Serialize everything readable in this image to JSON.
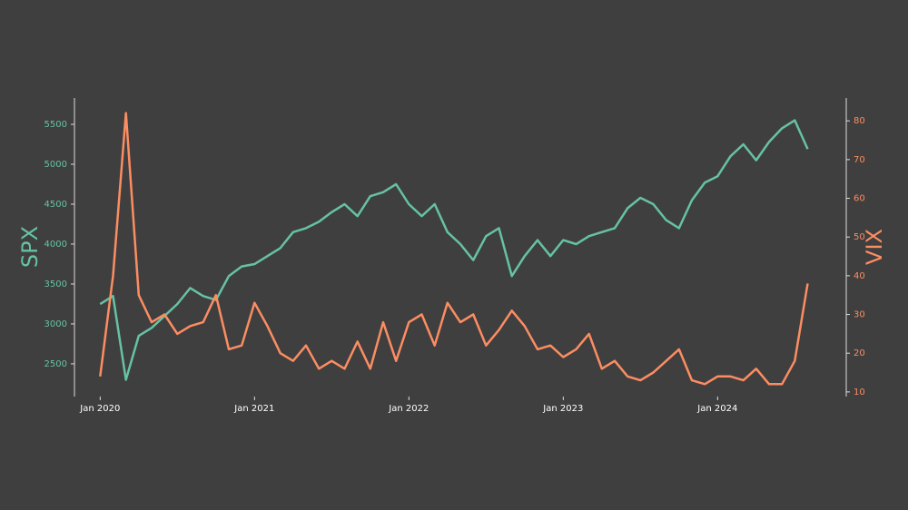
{
  "chart_data": {
    "type": "line",
    "x": [
      "2020-01",
      "2020-02",
      "2020-03",
      "2020-04",
      "2020-05",
      "2020-06",
      "2020-07",
      "2020-08",
      "2020-09",
      "2020-10",
      "2020-11",
      "2020-12",
      "2021-01",
      "2021-02",
      "2021-03",
      "2021-04",
      "2021-05",
      "2021-06",
      "2021-07",
      "2021-08",
      "2021-09",
      "2021-10",
      "2021-11",
      "2021-12",
      "2022-01",
      "2022-02",
      "2022-03",
      "2022-04",
      "2022-05",
      "2022-06",
      "2022-07",
      "2022-08",
      "2022-09",
      "2022-10",
      "2022-11",
      "2022-12",
      "2023-01",
      "2023-02",
      "2023-03",
      "2023-04",
      "2023-05",
      "2023-06",
      "2023-07",
      "2023-08",
      "2023-09",
      "2023-10",
      "2023-11",
      "2023-12",
      "2024-01",
      "2024-02",
      "2024-03",
      "2024-04",
      "2024-05",
      "2024-06",
      "2024-07",
      "2024-08"
    ],
    "series": [
      {
        "name": "SPX",
        "color": "#66c2a5",
        "axis": "y",
        "values": [
          3250,
          3350,
          2300,
          2850,
          2950,
          3100,
          3250,
          3450,
          3350,
          3300,
          3600,
          3720,
          3750,
          3850,
          3950,
          4150,
          4200,
          4280,
          4400,
          4500,
          4350,
          4600,
          4650,
          4750,
          4500,
          4350,
          4500,
          4150,
          4000,
          3800,
          4100,
          4200,
          3600,
          3850,
          4050,
          3850,
          4050,
          4000,
          4100,
          4150,
          4200,
          4450,
          4580,
          4500,
          4300,
          4200,
          4550,
          4770,
          4850,
          5100,
          5250,
          5050,
          5280,
          5450,
          5550,
          5190
        ]
      },
      {
        "name": "VIX",
        "color": "#fc8d62",
        "axis": "y2",
        "values": [
          14,
          40,
          82,
          35,
          28,
          30,
          25,
          27,
          28,
          35,
          21,
          22,
          33,
          27,
          20,
          18,
          22,
          16,
          18,
          16,
          23,
          16,
          28,
          18,
          28,
          30,
          22,
          33,
          28,
          30,
          22,
          26,
          31,
          27,
          21,
          22,
          19,
          21,
          25,
          16,
          18,
          14,
          13,
          15,
          18,
          21,
          13,
          12,
          14,
          14,
          13,
          16,
          12,
          12,
          18,
          38
        ]
      }
    ],
    "xlim": [
      "2019-11",
      "2024-11"
    ],
    "xticks": [
      {
        "value": "2020-01",
        "label": "Jan 2020"
      },
      {
        "value": "2021-01",
        "label": "Jan 2021"
      },
      {
        "value": "2022-01",
        "label": "Jan 2022"
      },
      {
        "value": "2023-01",
        "label": "Jan 2023"
      },
      {
        "value": "2024-01",
        "label": "Jan 2024"
      }
    ],
    "ylim": [
      2090,
      5830
    ],
    "yticks": [
      2500,
      3000,
      3500,
      4000,
      4500,
      5000,
      5500
    ],
    "y2lim": [
      8.8,
      85.9
    ],
    "y2ticks": [
      10,
      20,
      30,
      40,
      50,
      60,
      70,
      80
    ],
    "ylabel": "SPX",
    "y2label": "VIX"
  }
}
